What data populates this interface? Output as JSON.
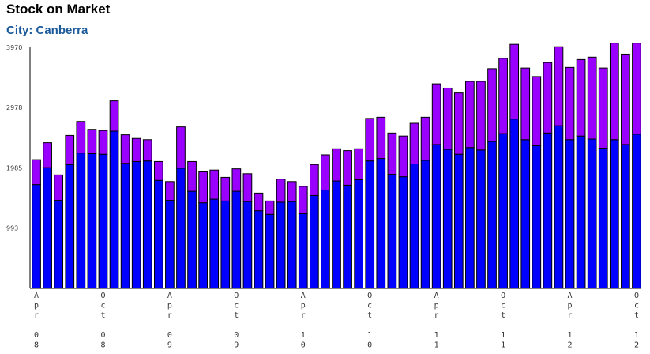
{
  "title": "Stock on Market",
  "subtitle": "City: Canberra",
  "colors": {
    "lower": "#0000ff",
    "upper": "#9900ff",
    "subtitle": "#1a5a9a",
    "axis": "#000000"
  },
  "chart_data": {
    "type": "bar",
    "stacked": true,
    "ylim": [
      0,
      3970
    ],
    "yticks": [
      993,
      1985,
      2978,
      3970
    ],
    "series": [
      {
        "values": [
          1710,
          1990,
          1450,
          2040,
          2230,
          2220,
          2210,
          2590,
          2060,
          2090,
          2100,
          1780,
          1450,
          1980,
          1600,
          1410,
          1470,
          1440,
          1600,
          1430,
          1280,
          1220,
          1420,
          1430,
          1230,
          1530,
          1620,
          1770,
          1700,
          1790,
          2100,
          2140,
          1880,
          1840,
          2050,
          2110,
          2370,
          2290,
          2210,
          2320,
          2280,
          2420,
          2550,
          2790,
          2450,
          2350,
          2560,
          2680,
          2450,
          2510,
          2460,
          2310,
          2450,
          2370,
          2540
        ]
      },
      {
        "values": [
          410,
          410,
          420,
          480,
          520,
          400,
          390,
          500,
          470,
          380,
          350,
          310,
          310,
          680,
          490,
          510,
          480,
          390,
          370,
          460,
          290,
          220,
          380,
          330,
          450,
          510,
          580,
          530,
          570,
          510,
          700,
          680,
          680,
          670,
          670,
          710,
          1000,
          1010,
          1010,
          1090,
          1130,
          1200,
          1240,
          1230,
          1180,
          1140,
          1160,
          1300,
          1190,
          1260,
          1350,
          1320,
          1590,
          1490,
          1500
        ]
      }
    ],
    "xlabels": [
      {
        "index": 0,
        "label": "Apr 08"
      },
      {
        "index": 6,
        "label": "Oct 08"
      },
      {
        "index": 12,
        "label": "Apr 09"
      },
      {
        "index": 18,
        "label": "Oct 09"
      },
      {
        "index": 24,
        "label": "Apr 10"
      },
      {
        "index": 30,
        "label": "Oct 10"
      },
      {
        "index": 36,
        "label": "Apr 11"
      },
      {
        "index": 42,
        "label": "Oct 11"
      },
      {
        "index": 48,
        "label": "Apr 12"
      },
      {
        "index": 54,
        "label": "Oct 12"
      }
    ]
  }
}
